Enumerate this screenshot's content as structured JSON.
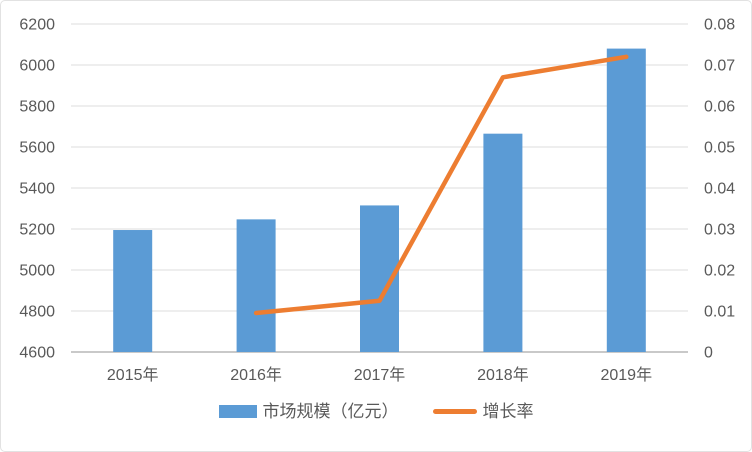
{
  "chart_data": {
    "type": "combo_bar_line",
    "title": "",
    "categories": [
      "2015年",
      "2016年",
      "2017年",
      "2018年",
      "2019年"
    ],
    "series": [
      {
        "name": "市场规模（亿元）",
        "type": "bar",
        "axis": "left",
        "color": "#5B9BD5",
        "values": [
          5195,
          5247,
          5315,
          5665,
          6080
        ]
      },
      {
        "name": "增长率",
        "type": "line",
        "axis": "right",
        "color": "#ED7D31",
        "values": [
          null,
          0.0095,
          0.0125,
          0.067,
          0.072
        ]
      }
    ],
    "left_axis": {
      "min": 4600,
      "max": 6200,
      "step": 200,
      "tick_labels": [
        "4600",
        "4800",
        "5000",
        "5200",
        "5400",
        "5600",
        "5800",
        "6000",
        "6200"
      ]
    },
    "right_axis": {
      "min": 0,
      "max": 0.08,
      "step": 0.01,
      "tick_labels": [
        "0",
        "0.01",
        "0.02",
        "0.03",
        "0.04",
        "0.05",
        "0.06",
        "0.07",
        "0.08"
      ]
    },
    "grid": true,
    "legend_position": "bottom",
    "colors": {
      "text": "#595959",
      "grid": "#DCDCDC",
      "axis_line": "#C9C9C9",
      "background": "#FFFFFF",
      "border": "#E2E2E2"
    }
  }
}
